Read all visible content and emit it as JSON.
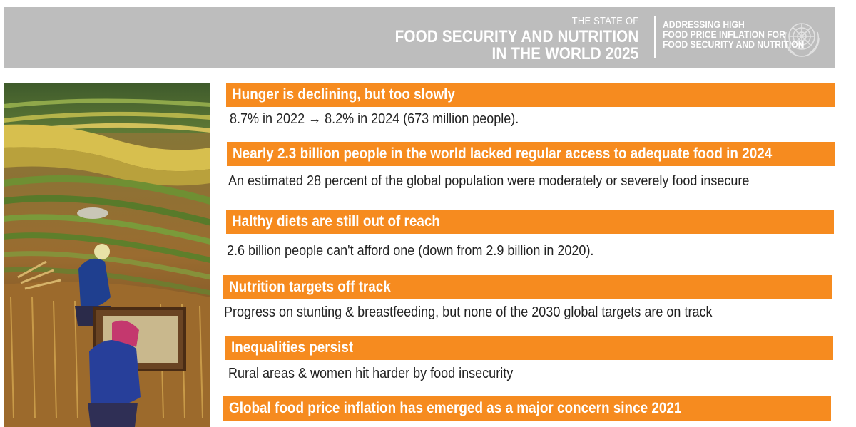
{
  "header": {
    "kicker": "THE STATE OF",
    "title_line1": "FOOD SECURITY AND NUTRITION",
    "title_line2": "IN THE WORLD 2025",
    "theme_line1": "ADDRESSING HIGH",
    "theme_line2": "FOOD PRICE INFLATION FOR",
    "theme_line3": "FOOD SECURITY AND NUTRITION",
    "emblem_icon": "un-emblem-icon"
  },
  "photo": {
    "icon": "rice-terrace-farmers-photo"
  },
  "findings": [
    {
      "heading": "Hunger is declining, but too slowly",
      "detail": "8.7% in 2022 → 8.2% in 2024 (673 million people)."
    },
    {
      "heading": "Nearly 2.3 billion people in the world lacked regular access to adequate food in 2024",
      "detail": "An estimated 28 percent of the global population were moderately or severely food insecure"
    },
    {
      "heading": "Halthy diets are still out of reach",
      "detail": "2.6 billion people can't afford one (down from 2.9 billion in 2020)."
    },
    {
      "heading": "Nutrition targets off track",
      "detail": "Progress on stunting & breastfeeding, but none of the 2030 global targets are on track"
    },
    {
      "heading": "Inequalities persist",
      "detail": "Rural areas & women hit harder by food insecurity"
    },
    {
      "heading": "Global food price inflation has emerged as a major concern since 2021"
    }
  ],
  "colors": {
    "accent_orange": "#f68b1f",
    "banner_gray": "#bdbdbd",
    "text_dark": "#222222"
  }
}
